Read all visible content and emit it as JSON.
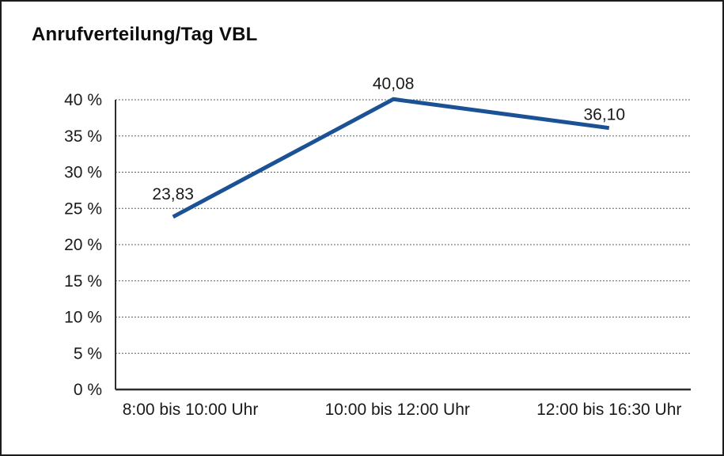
{
  "window": {
    "title": "Anrufverteilung/Tag VBL"
  },
  "chart_data": {
    "type": "line",
    "title": "Anrufverteilung/Tag VBL",
    "categories": [
      "8:00 bis 10:00 Uhr",
      "10:00 bis 12:00 Uhr",
      "12:00 bis 16:30 Uhr"
    ],
    "values": [
      23.83,
      40.08,
      36.1
    ],
    "point_labels": [
      "23,83",
      "40,08",
      "36,10"
    ],
    "series_name": "Anrufverteilung",
    "xlabel": "",
    "ylabel": "",
    "ylim": [
      0,
      40
    ],
    "y_tick_step": 5,
    "y_ticks": [
      {
        "value": 0,
        "label": "0 %"
      },
      {
        "value": 5,
        "label": "5 %"
      },
      {
        "value": 10,
        "label": "10 %"
      },
      {
        "value": 15,
        "label": "15 %"
      },
      {
        "value": 20,
        "label": "20 %"
      },
      {
        "value": 25,
        "label": "25 %"
      },
      {
        "value": 30,
        "label": "30 %"
      },
      {
        "value": 35,
        "label": "35 %"
      },
      {
        "value": 40,
        "label": "40 %"
      }
    ],
    "grid": "dotted-horizontal",
    "legend": "none",
    "colors": {
      "line": "#1A5295",
      "axis": "#2e2e2e",
      "gridline": "#4d4d4d",
      "text": "#1a1a1a",
      "background": "#ffffff",
      "border": "#1c1c1c"
    }
  }
}
